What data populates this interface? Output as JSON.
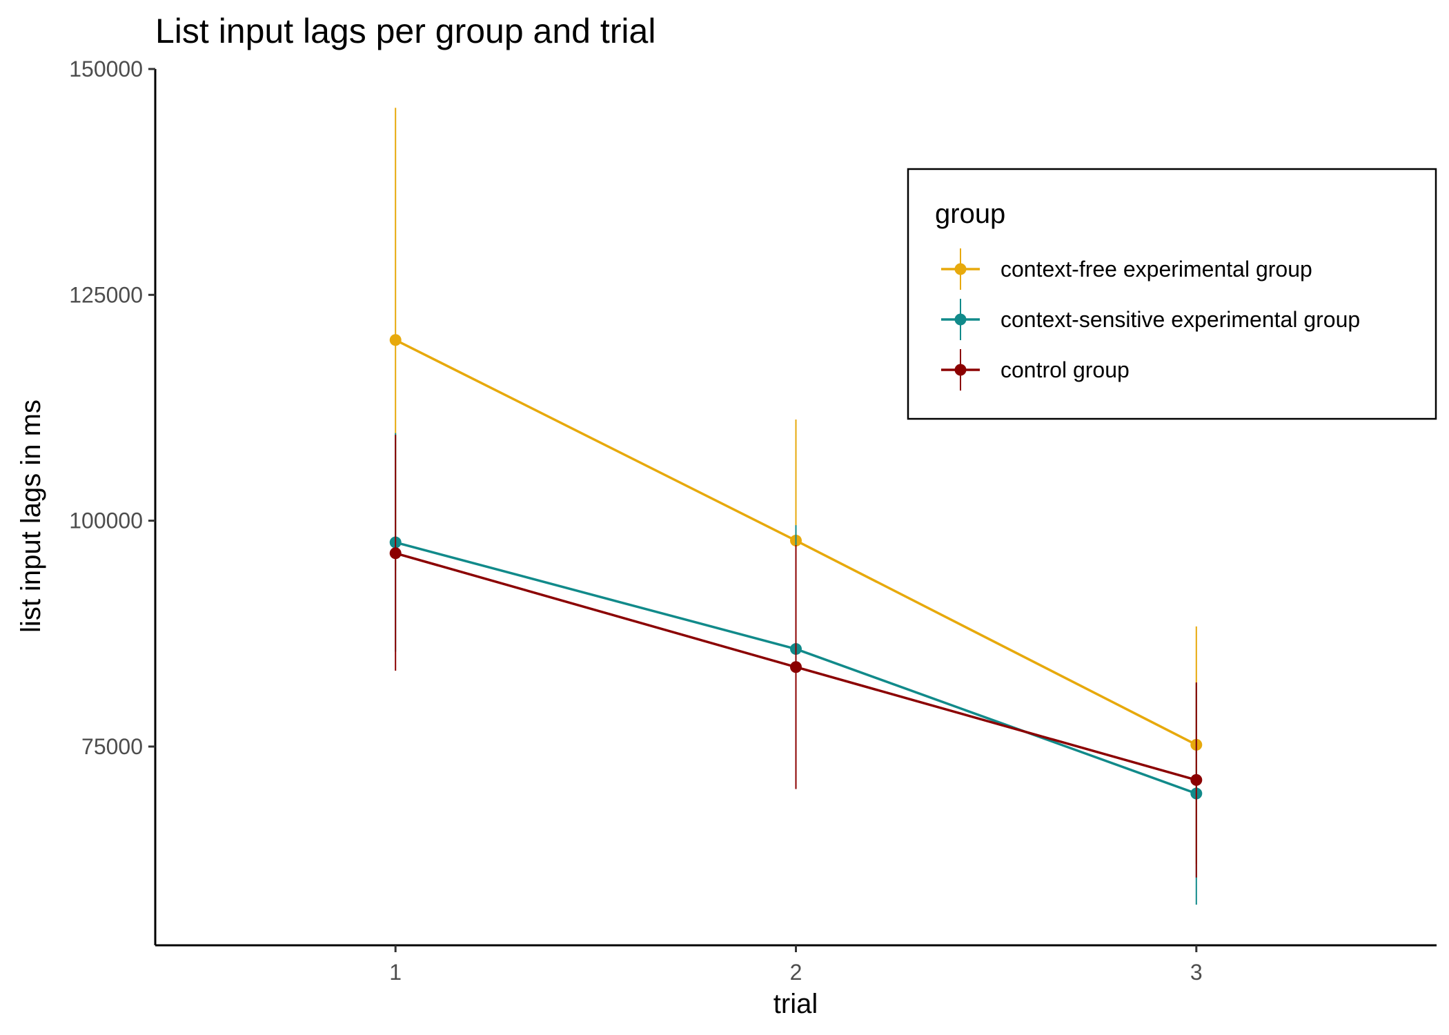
{
  "chart_data": {
    "type": "line",
    "title": "List input lags per group and trial",
    "xlabel": "trial",
    "ylabel": "list input lags in ms",
    "x": [
      1,
      2,
      3
    ],
    "x_tick_labels": [
      "1",
      "2",
      "3"
    ],
    "xlim": [
      0.4,
      3.6
    ],
    "ylim": [
      53000,
      150000
    ],
    "y_ticks": [
      75000,
      100000,
      125000,
      150000
    ],
    "y_tick_labels": [
      "75000",
      "100000",
      "125000",
      "150000"
    ],
    "grid": false,
    "legend": {
      "title": "group",
      "position": "top-right"
    },
    "series": [
      {
        "name": "context-free experimental group",
        "color": "#E7A90C",
        "values": [
          120000,
          97800,
          75200
        ],
        "error_low": [
          94500,
          84600,
          62000
        ],
        "error_high": [
          145700,
          111200,
          88300
        ]
      },
      {
        "name": "context-sensitive experimental group",
        "color": "#118A8A",
        "values": [
          97600,
          85800,
          69800
        ],
        "error_low": [
          85500,
          72000,
          57500
        ],
        "error_high": [
          109700,
          99500,
          82000
        ]
      },
      {
        "name": "control group",
        "color": "#8B0000",
        "values": [
          96400,
          83800,
          71300
        ],
        "error_low": [
          83400,
          70300,
          60500
        ],
        "error_high": [
          109500,
          97300,
          82100
        ]
      }
    ]
  }
}
